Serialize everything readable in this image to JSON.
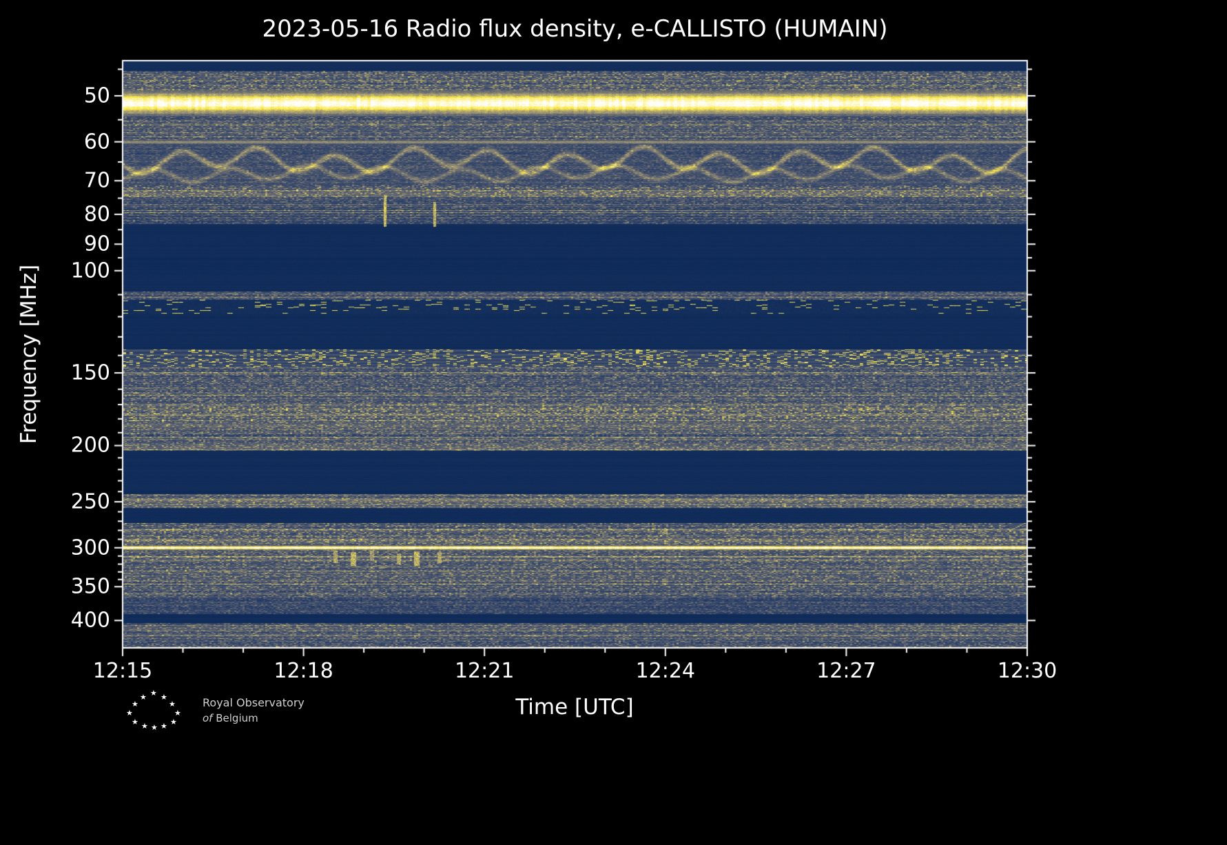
{
  "title": "2023-05-16 Radio flux density, e-CALLISTO (HUMAIN)",
  "colors": {
    "background": "#000000",
    "text": "#ffffff",
    "frame": "#ffffff"
  },
  "logo": {
    "line1": "Royal Observatory",
    "line2_word1": "of",
    "line2_word2": "Belgium",
    "star_glyph": "★"
  },
  "chart_data": {
    "type": "heatmap",
    "title": "2023-05-16 Radio flux density, e-CALLISTO (HUMAIN)",
    "xlabel": "Time [UTC]",
    "ylabel": "Frequency [MHz]",
    "x_range": [
      "12:15",
      "12:30"
    ],
    "x_ticks": [
      "12:15",
      "12:18",
      "12:21",
      "12:24",
      "12:27",
      "12:30"
    ],
    "x_minor_intervals": 15,
    "y_scale": "log",
    "y_range": [
      43.5,
      446
    ],
    "y_ticks": [
      50,
      60,
      70,
      80,
      90,
      100,
      150,
      200,
      250,
      300,
      350,
      400
    ],
    "y_minor_ticks": [
      45,
      55,
      65,
      75,
      85,
      95,
      110,
      120,
      130,
      140,
      160,
      170,
      180,
      190,
      210,
      220,
      230,
      240,
      260,
      270,
      280,
      290,
      310,
      320,
      330,
      340,
      360,
      370,
      380,
      390,
      410,
      420,
      430,
      440
    ],
    "colormap": {
      "name": "cividis-like blue-to-yellow",
      "stops": [
        {
          "v": 0.0,
          "c": "#002051"
        },
        {
          "v": 0.25,
          "c": "#31446b"
        },
        {
          "v": 0.5,
          "c": "#666970"
        },
        {
          "v": 0.75,
          "c": "#a69d75"
        },
        {
          "v": 1.0,
          "c": "#fdea45"
        },
        {
          "v": 1.3,
          "c": "#ffffff"
        }
      ]
    },
    "description": "Dynamic radio spectrogram 12:15-12:30 UTC. Bright saturated emission band near 50 MHz, scalloped interference fringes 60-70 MHz, blank filtered band ~85-108 MHz, intermittent airband carriers ~112-118 MHz, dense carrier speckle ~140 MHz, broadband terrestrial noise 146-204 MHz with brighter line ~177 MHz, blank 204-242 MHz, narrow active strip ~247-252 MHz, noise 272-365 MHz with continuous bright carrier at ~300 MHz and burst dashes 12:18-12:21, blank 390-404 MHz, noise to 446 MHz.",
    "bands": [
      {
        "f": [
          43.5,
          45.2
        ],
        "kind": "blank",
        "base": 0.07,
        "note": "dark strip at top edge"
      },
      {
        "f": [
          45.2,
          48.8
        ],
        "kind": "noise",
        "base": 0.3,
        "amp": 0.55,
        "note": "streaky noise above main band"
      },
      {
        "f": [
          48.8,
          54.2
        ],
        "kind": "bright",
        "base": 1.0,
        "note": "strong continuous emission band ~50-54 MHz"
      },
      {
        "f": [
          54.2,
          59.4
        ],
        "kind": "noise",
        "base": 0.27,
        "amp": 0.45
      },
      {
        "f": [
          59.4,
          60.6
        ],
        "kind": "line",
        "base": 0.5,
        "note": "thin brighter line near 60 MHz"
      },
      {
        "f": [
          60.6,
          71.2
        ],
        "kind": "wavy",
        "base": 0.26,
        "amp": 0.3,
        "note": "scalloped interference fringes 60-70 MHz"
      },
      {
        "f": [
          71.2,
          74.6
        ],
        "kind": "noise",
        "base": 0.34,
        "amp": 0.55,
        "note": "brighter channels ~73 MHz"
      },
      {
        "f": [
          74.6,
          83.0
        ],
        "kind": "noise",
        "base": 0.24,
        "amp": 0.4
      },
      {
        "f": [
          83.0,
          108.5
        ],
        "kind": "blank",
        "base": 0.06,
        "note": "no data / filtered band"
      },
      {
        "f": [
          108.5,
          112.0
        ],
        "kind": "noise",
        "base": 0.3,
        "amp": 0.45,
        "note": "thin noisy strip ~110 MHz"
      },
      {
        "f": [
          112.0,
          118.5
        ],
        "kind": "bursty",
        "base": 0.08,
        "amp": 1.0,
        "note": "intermittent yellow carrier dashes"
      },
      {
        "f": [
          118.5,
          136.5
        ],
        "kind": "blank",
        "base": 0.06
      },
      {
        "f": [
          136.5,
          146.0
        ],
        "kind": "speckleline",
        "base": 0.3,
        "amp": 1.0,
        "thresh": 0.84,
        "note": "dense intermittent carriers ~140-145 MHz"
      },
      {
        "f": [
          146.0,
          171.0
        ],
        "kind": "noise",
        "base": 0.3,
        "amp": 0.5
      },
      {
        "f": [
          171.0,
          181.5
        ],
        "kind": "noise",
        "base": 0.4,
        "amp": 0.65,
        "note": "brighter band ~175-180 MHz"
      },
      {
        "f": [
          181.5,
          204.0
        ],
        "kind": "noise",
        "base": 0.3,
        "amp": 0.5
      },
      {
        "f": [
          204.0,
          242.0
        ],
        "kind": "blank",
        "base": 0.06
      },
      {
        "f": [
          242.0,
          256.0
        ],
        "kind": "noise",
        "base": 0.34,
        "amp": 0.5,
        "note": "thin active strip ~250 MHz"
      },
      {
        "f": [
          256.0,
          271.5
        ],
        "kind": "blank",
        "base": 0.06
      },
      {
        "f": [
          271.5,
          296.5
        ],
        "kind": "noise",
        "base": 0.3,
        "amp": 0.55
      },
      {
        "f": [
          296.5,
          302.5
        ],
        "kind": "bright",
        "base": 0.95,
        "note": "strong continuous carrier ~300 MHz"
      },
      {
        "f": [
          302.5,
          364.0
        ],
        "kind": "noise",
        "base": 0.3,
        "amp": 0.5
      },
      {
        "f": [
          364.0,
          390.0
        ],
        "kind": "noise",
        "base": 0.22,
        "amp": 0.35
      },
      {
        "f": [
          390.0,
          404.0
        ],
        "kind": "blank",
        "base": 0.06
      },
      {
        "f": [
          404.0,
          446.0
        ],
        "kind": "noise",
        "base": 0.28,
        "amp": 0.45
      }
    ],
    "lines": [
      {
        "f": 73.6,
        "v": 0.55
      },
      {
        "f": 177.0,
        "v": 0.7
      },
      {
        "f": 183.5,
        "v": 0.5
      },
      {
        "f": 247.5,
        "v": 0.7
      },
      {
        "f": 252.5,
        "v": 0.5
      }
    ],
    "events": [
      {
        "x": 0.29,
        "w": 2,
        "f": [
          74,
          84
        ],
        "v": 0.95,
        "note": "vertical burst ~12:19.4"
      },
      {
        "x": 0.345,
        "w": 2,
        "f": [
          76,
          84
        ],
        "v": 0.9,
        "note": "vertical burst ~12:20.1"
      },
      {
        "x": 0.235,
        "w": 3,
        "f": [
          303,
          318
        ],
        "v": 0.85
      },
      {
        "x": 0.255,
        "w": 4,
        "f": [
          305,
          322
        ],
        "v": 0.9
      },
      {
        "x": 0.275,
        "w": 3,
        "f": [
          303,
          316
        ],
        "v": 0.8
      },
      {
        "x": 0.305,
        "w": 3,
        "f": [
          306,
          320
        ],
        "v": 0.85
      },
      {
        "x": 0.325,
        "w": 4,
        "f": [
          304,
          322
        ],
        "v": 0.9
      },
      {
        "x": 0.35,
        "w": 3,
        "f": [
          305,
          318
        ],
        "v": 0.85
      },
      {
        "x": 0.6,
        "w": 3,
        "f": [
          278,
          284
        ],
        "v": 0.8
      },
      {
        "x": 0.28,
        "w": 2,
        "f": [
          352,
          358
        ],
        "v": 0.6
      }
    ]
  }
}
